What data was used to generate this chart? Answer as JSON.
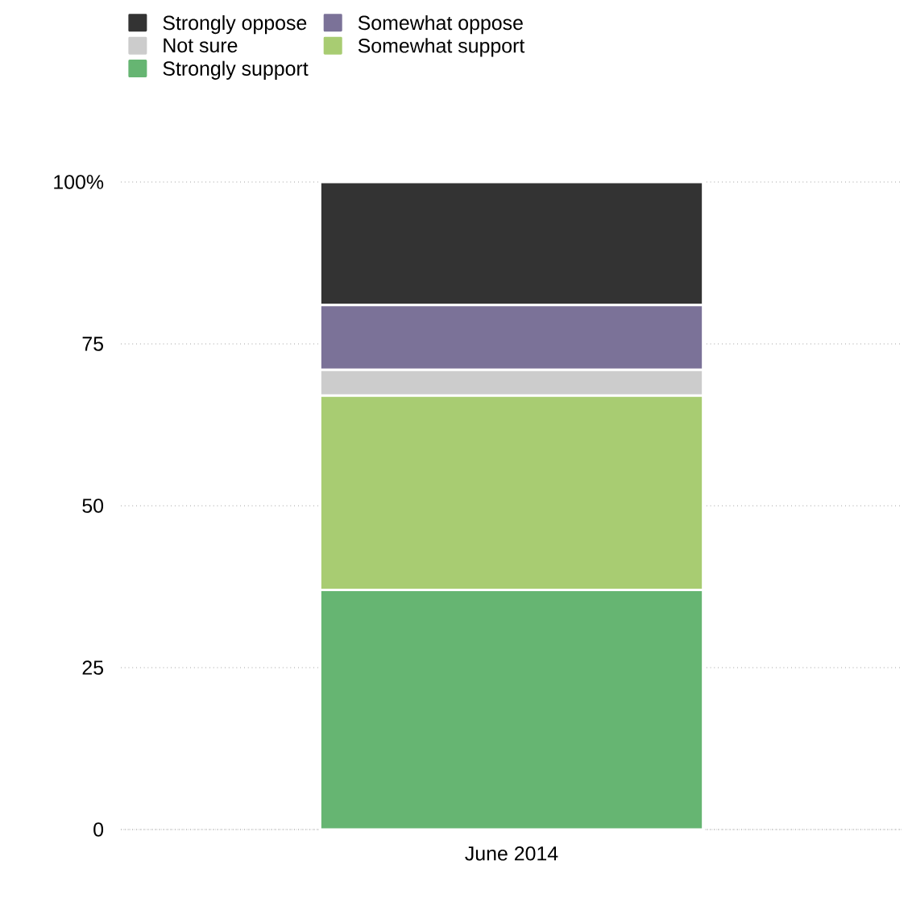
{
  "chart_data": {
    "type": "bar",
    "stacked": true,
    "categories": [
      "June 2014"
    ],
    "series": [
      {
        "name": "Strongly support",
        "color": "#66b572",
        "values": [
          37
        ]
      },
      {
        "name": "Somewhat support",
        "color": "#a8cc72",
        "values": [
          30
        ]
      },
      {
        "name": "Not sure",
        "color": "#cccccc",
        "values": [
          4
        ]
      },
      {
        "name": "Somewhat oppose",
        "color": "#7b7298",
        "values": [
          10
        ]
      },
      {
        "name": "Strongly oppose",
        "color": "#333333",
        "values": [
          19
        ]
      }
    ],
    "ylim": [
      0,
      100
    ],
    "yticks": [
      0,
      25,
      50,
      75,
      {
        "value": 100,
        "label": "100%"
      }
    ],
    "grid": "y",
    "legend": "top left"
  }
}
